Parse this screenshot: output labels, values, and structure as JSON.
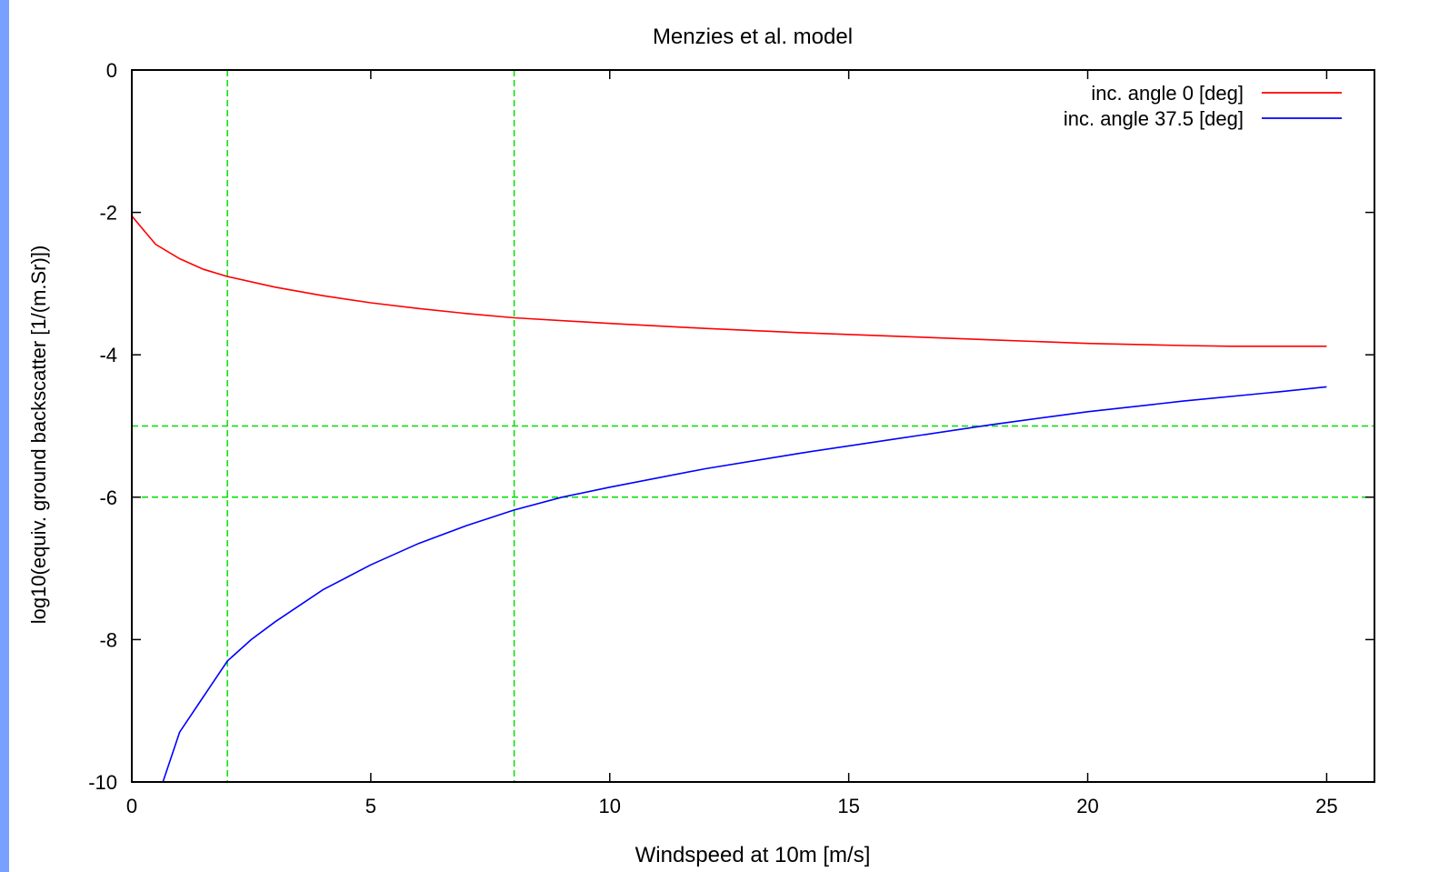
{
  "chart_data": {
    "type": "line",
    "title": "Menzies et al. model",
    "xlabel": "Windspeed at 10m [m/s]",
    "ylabel": "log10(equiv. ground backscatter [1/(m.Sr)])",
    "xlim": [
      0,
      26
    ],
    "ylim": [
      -10,
      0
    ],
    "xticks": [
      0,
      5,
      10,
      15,
      20,
      25
    ],
    "yticks": [
      0,
      -2,
      -4,
      -6,
      -8,
      -10
    ],
    "grid": false,
    "legend_position": "top-right",
    "reference_lines": {
      "vertical_x": [
        2,
        8
      ],
      "horizontal_y": [
        -5,
        -6
      ],
      "color": "#00e000",
      "style": "dashed"
    },
    "series": [
      {
        "name": "inc. angle 0 [deg]",
        "color": "#ff0000",
        "x": [
          0,
          0.25,
          0.5,
          1,
          1.5,
          2,
          3,
          4,
          5,
          6,
          7,
          8,
          10,
          12,
          14,
          16,
          18,
          20,
          22,
          23,
          24,
          25
        ],
        "y": [
          -2.05,
          -2.25,
          -2.45,
          -2.65,
          -2.8,
          -2.9,
          -3.05,
          -3.17,
          -3.27,
          -3.35,
          -3.42,
          -3.48,
          -3.56,
          -3.63,
          -3.69,
          -3.74,
          -3.79,
          -3.84,
          -3.87,
          -3.88,
          -3.88,
          -3.88
        ]
      },
      {
        "name": "inc. angle 37.5 [deg]",
        "color": "#0000ff",
        "x": [
          0.65,
          1,
          1.5,
          2,
          2.5,
          3,
          4,
          5,
          6,
          7,
          8,
          9,
          10,
          12,
          14,
          16,
          18,
          20,
          22,
          24,
          25
        ],
        "y": [
          -10.0,
          -9.3,
          -8.8,
          -8.3,
          -8.0,
          -7.75,
          -7.3,
          -6.95,
          -6.65,
          -6.4,
          -6.18,
          -6.0,
          -5.86,
          -5.6,
          -5.38,
          -5.18,
          -4.98,
          -4.8,
          -4.65,
          -4.52,
          -4.45
        ]
      }
    ]
  }
}
